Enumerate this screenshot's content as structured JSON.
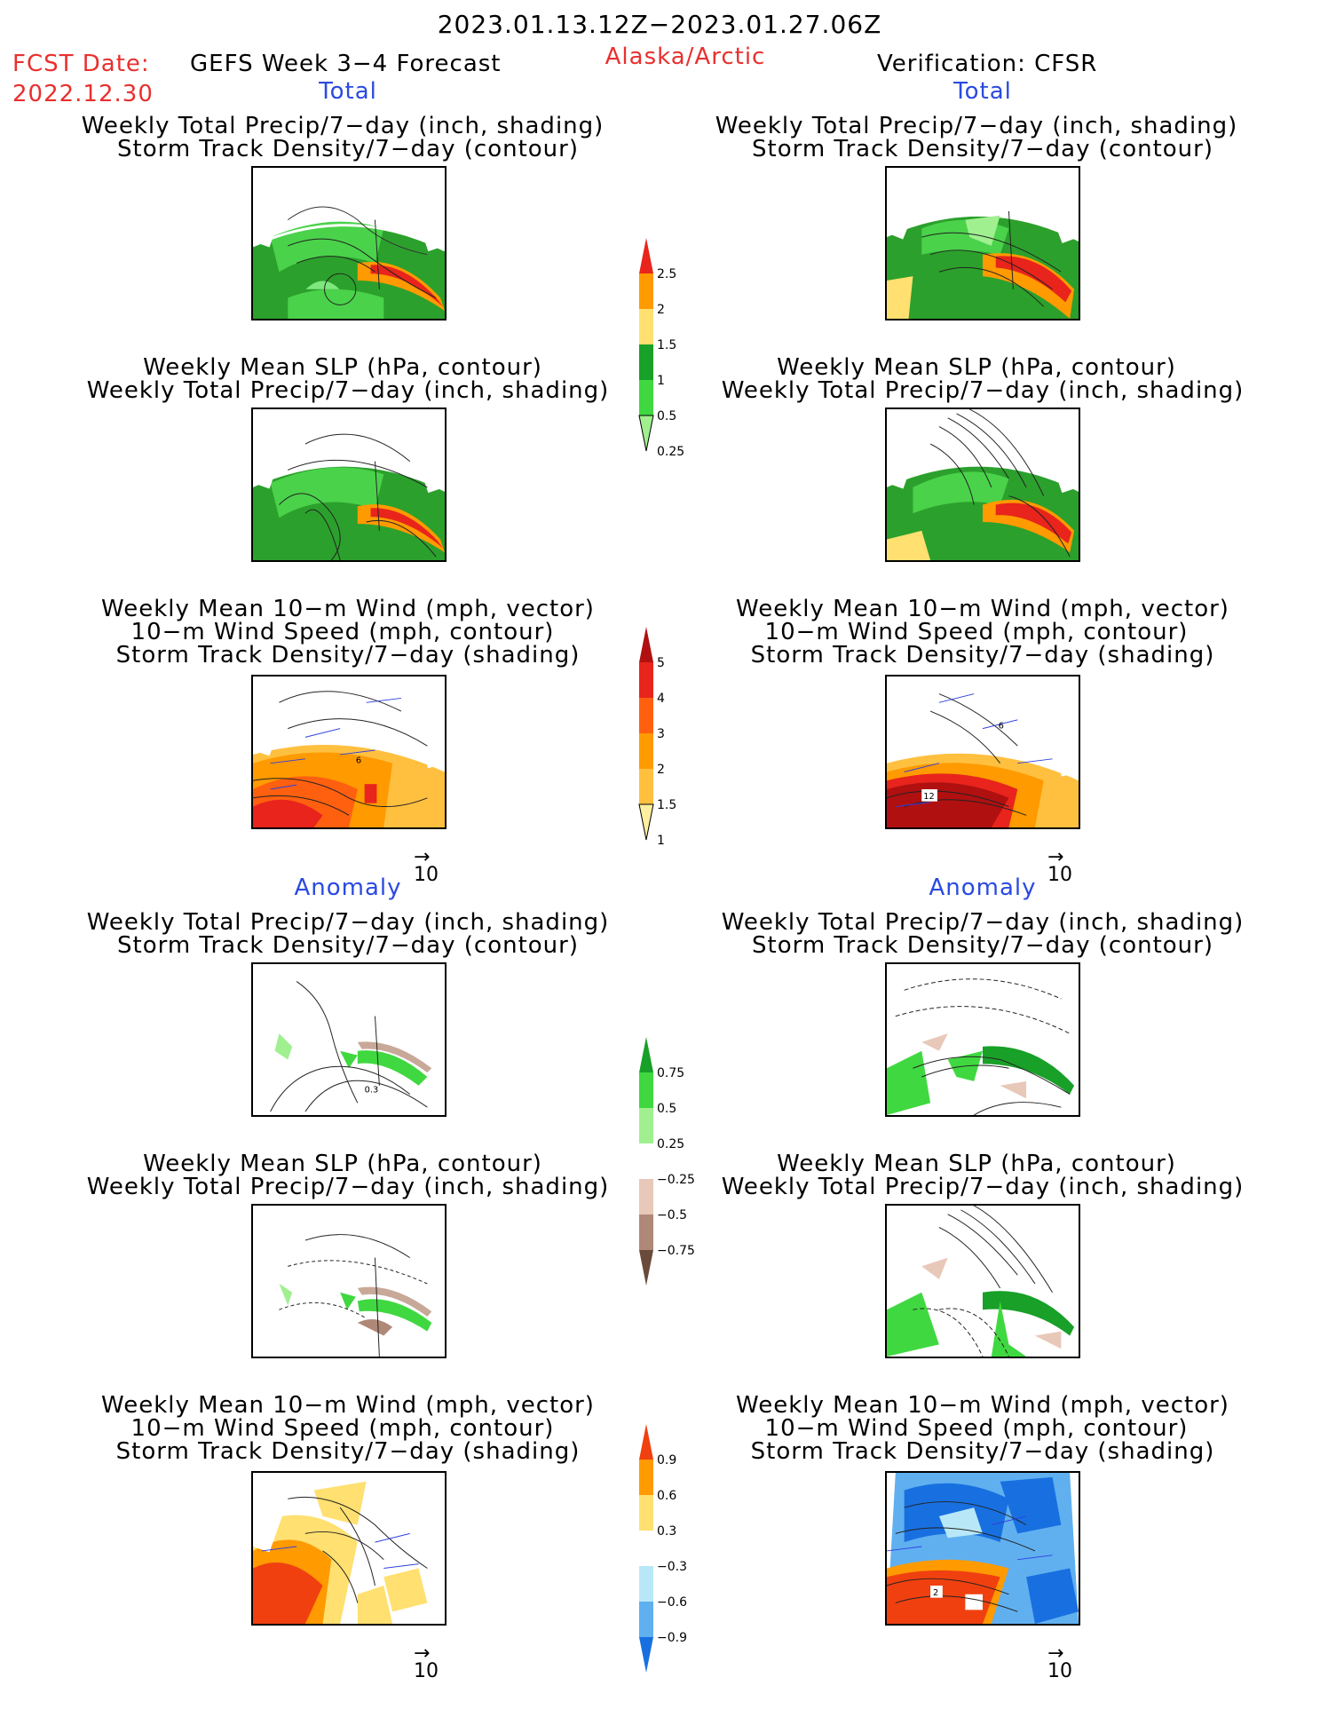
{
  "header": {
    "date_range": "2023.01.13.12Z−2023.01.27.06Z",
    "fcst_date_label": "FCST Date:",
    "fcst_date_value": "2022.12.30",
    "forecast_title": "GEFS Week 3−4 Forecast",
    "region": "Alaska/Arctic",
    "verification": "Verification: CFSR"
  },
  "sections": {
    "total": "Total",
    "anomaly": "Anomaly"
  },
  "panel_titles": {
    "precip_storm": [
      "Weekly Total Precip/7−day (inch, shading)",
      "Storm Track Density/7−day (contour)"
    ],
    "slp_precip": [
      "Weekly Mean SLP (hPa, contour)",
      "Weekly Total Precip/7−day (inch, shading)"
    ],
    "wind_storm": [
      "Weekly Mean 10−m Wind (mph, vector)",
      "10−m Wind Speed (mph, contour)",
      "Storm Track Density/7−day (shading)"
    ]
  },
  "vector_ref": "10",
  "map_labels": {
    "total_wind_left": "6",
    "total_wind_right_a": "12",
    "total_wind_right_b": "6",
    "anom_precip_left": "0.3",
    "anom_wind_right": "2"
  },
  "colorbars": {
    "precip_total": {
      "labels": [
        "2.5",
        "2",
        "1.5",
        "1",
        "0.5",
        "0.25"
      ],
      "colors": [
        "#e8241c",
        "#ff9a00",
        "#ffe070",
        "#18a028",
        "#40d840",
        "#a0f090"
      ]
    },
    "storm_total": {
      "labels": [
        "5",
        "4",
        "3",
        "2",
        "1.5",
        "1"
      ],
      "colors": [
        "#b01010",
        "#e8241c",
        "#ff6010",
        "#ff9a00",
        "#ffc040",
        "#fff0a0"
      ]
    },
    "precip_anom": {
      "labels": [
        "0.75",
        "0.5",
        "0.25",
        "−0.25",
        "−0.5",
        "−0.75"
      ],
      "colors": [
        "#18a028",
        "#40d840",
        "#a0f090",
        "#ffffff",
        "#e8c8b8",
        "#b08878",
        "#6a4a3a"
      ]
    },
    "storm_anom": {
      "labels": [
        "0.9",
        "0.6",
        "0.3",
        "−0.3",
        "−0.6",
        "−0.9"
      ],
      "colors": [
        "#f04010",
        "#ff9a00",
        "#ffe070",
        "#ffffff",
        "#b8e8f8",
        "#60b0f0",
        "#1870e0"
      ]
    }
  }
}
